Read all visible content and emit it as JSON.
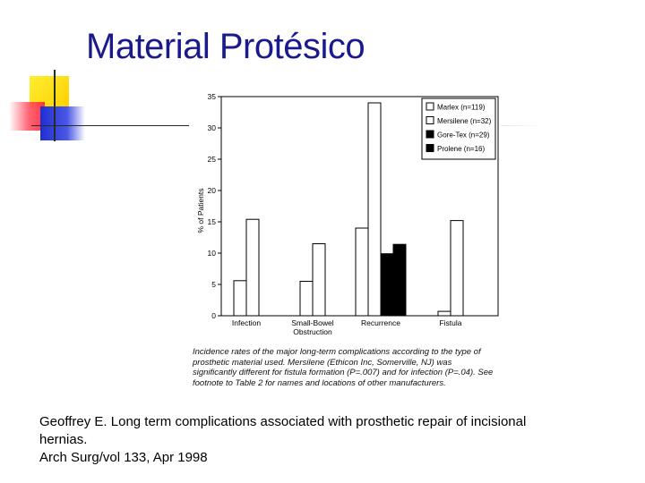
{
  "slide": {
    "title": "Material Protésico"
  },
  "chart_data": {
    "type": "bar",
    "ylabel": "% of Patients",
    "xlabel": "",
    "ylim": [
      0,
      35
    ],
    "yticks": [
      0,
      5,
      10,
      15,
      20,
      25,
      30,
      35
    ],
    "grid": false,
    "legend_position": "top-right",
    "categories": [
      "Infection",
      "Small-Bowel Obstruction",
      "Recurrence",
      "Fistula"
    ],
    "category_lines": [
      [
        "Infection"
      ],
      [
        "Small-Bowel",
        "Obstruction"
      ],
      [
        "Recurrence"
      ],
      [
        "Fistula"
      ]
    ],
    "series": [
      {
        "name": "Marlex (n=119)",
        "fill": "#ffffff",
        "values": [
          5.6,
          5.5,
          14.0,
          0.7
        ]
      },
      {
        "name": "Mersilene (n=32)",
        "fill": "#ffffff",
        "values": [
          15.4,
          11.5,
          34.0,
          15.2
        ]
      },
      {
        "name": "Gore-Tex (n=29)",
        "fill": "#000000",
        "values": [
          null,
          null,
          9.9,
          null
        ]
      },
      {
        "name": "Prolene (n=16)",
        "fill": "#000000",
        "values": [
          null,
          null,
          11.4,
          null
        ]
      }
    ]
  },
  "caption": "Incidence rates of the major long-term complications according to the type of prosthetic material used. Mersilene (Ethicon Inc, Somerville, NJ) was significantly different for fistula formation (P=.007) and for infection (P=.04). See footnote to Table 2 for names and locations of other manufacturers.",
  "citation": {
    "line1": "Geoffrey E. Long term complications associated with prosthetic repair of incisional",
    "line2": "hernias.",
    "line3": "Arch Surg/vol 133, Apr 1998"
  }
}
